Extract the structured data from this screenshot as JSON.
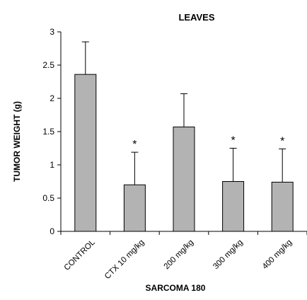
{
  "chart_data": {
    "type": "bar",
    "title": "LEAVES",
    "xlabel": "SARCOMA 180",
    "ylabel": "TUMOR WEIGHT (g)",
    "ylim": [
      0,
      3
    ],
    "yticks": [
      "0",
      "0.5",
      "1",
      "1.5",
      "2",
      "2.5",
      "3"
    ],
    "categories": [
      "CONTROL",
      "CTX 10 mg/kg",
      "200 mg/kg",
      "300 mg/kg",
      "400 mg/kg"
    ],
    "values": [
      2.36,
      0.7,
      1.57,
      0.75,
      0.74
    ],
    "error_plus": [
      0.49,
      0.49,
      0.5,
      0.5,
      0.5
    ],
    "significance": [
      "",
      "*",
      "",
      "*",
      "*"
    ],
    "bar_color": "#b3b3b3",
    "grid": false,
    "legend": "none"
  }
}
